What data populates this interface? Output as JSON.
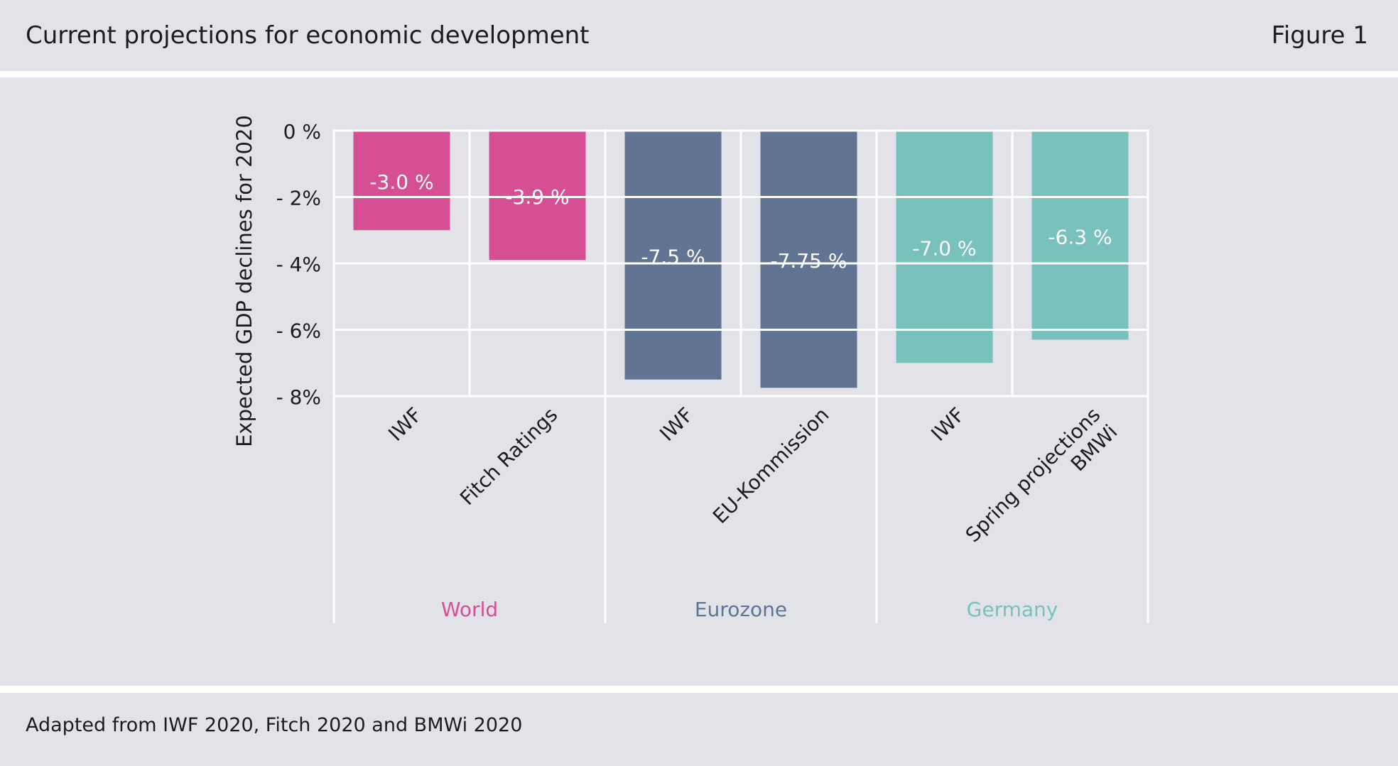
{
  "header": {
    "title": "Current projections for economic development",
    "figure_label": "Figure 1"
  },
  "footer": {
    "source": "Adapted from IWF 2020, Fitch 2020 and BMWi 2020"
  },
  "colors": {
    "background": "#e2e3e8",
    "world": "#d64f94",
    "eurozone": "#627493",
    "germany": "#79c1bc",
    "grid": "#ffffff",
    "text": "#1c1c1c"
  },
  "chart_data": {
    "type": "bar",
    "title": "",
    "ylabel": "Expected GDP declines for 2020",
    "ylim": [
      -8,
      0
    ],
    "yticks": [
      0,
      -2,
      -4,
      -6,
      -8
    ],
    "ytick_labels": [
      "0 %",
      "- 2%",
      "- 4%",
      "- 6%",
      "- 8%"
    ],
    "grid": true,
    "groups": [
      {
        "name": "World",
        "color": "#d64f94",
        "bars": [
          {
            "label": "IWF",
            "value": -3.0,
            "display": "-3.0 %"
          },
          {
            "label": "Fitch Ratings",
            "value": -3.9,
            "display": "-3.9 %"
          }
        ]
      },
      {
        "name": "Eurozone",
        "color": "#627493",
        "bars": [
          {
            "label": "IWF",
            "value": -7.5,
            "display": "-7.5 %"
          },
          {
            "label": "EU-Kommission",
            "value": -7.75,
            "display": "-7.75 %"
          }
        ]
      },
      {
        "name": "Germany",
        "color": "#79c1bc",
        "bars": [
          {
            "label": "IWF",
            "value": -7.0,
            "display": "-7.0 %"
          },
          {
            "label": "Spring projections BMWi",
            "label_lines": [
              "Spring projections",
              "BMWi"
            ],
            "value": -6.3,
            "display": "-6.3 %"
          }
        ]
      }
    ]
  }
}
